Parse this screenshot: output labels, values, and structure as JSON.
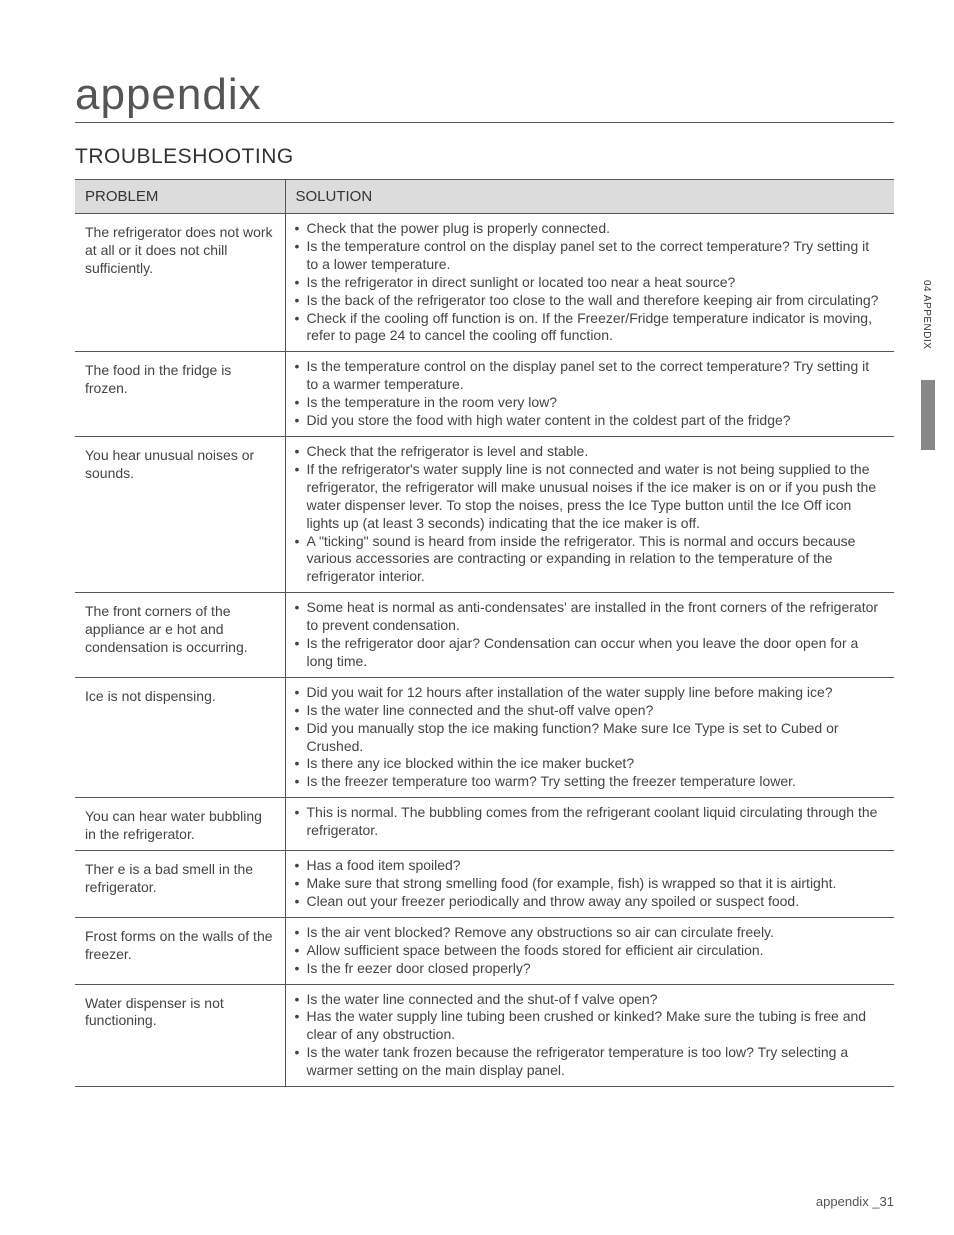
{
  "page": {
    "appendix_title": "appendix",
    "section_title": "TROUBLESHOOTING",
    "side_tab": "04 APPENDIX",
    "footer": "appendix _31"
  },
  "table": {
    "headers": {
      "problem": "PROBLEM",
      "solution": "SOLUTION"
    },
    "rows": [
      {
        "problem": "The refrigerator does not work at all or it does not chill sufficiently.",
        "solutions": [
          "Check that the power plug is properly connected.",
          "Is the temperature control on the display panel set to the correct temperature? Try setting it to a lower temperature.",
          "Is the refrigerator in direct sunlight or located too near a heat source?",
          "Is the back of the refrigerator too close to the wall and therefore keeping air from circulating?",
          "Check if the cooling off function is on. If the Freezer/Fridge temperature indicator is moving, refer to page 24 to cancel the cooling off function."
        ]
      },
      {
        "problem": "The food in the fridge is frozen.",
        "solutions": [
          "Is the temperature control on the display panel set to the correct temperature? Try setting it to a warmer temperature.",
          "Is the temperature in the room very low?",
          "Did you store the food with high water content in the coldest part of the fridge?"
        ]
      },
      {
        "problem": "You hear unusual noises or sounds.",
        "solutions": [
          "Check that the refrigerator is level and stable.",
          "If the refrigerator's water supply line is not connected and water is not being supplied to the refrigerator, the refrigerator will make unusual noises if the ice maker is on or if you push the water dispenser lever. To stop the noises, press the Ice Type button until the Ice Off icon lights up (at least 3 seconds) indicating that the ice maker is off.",
          "A \"ticking\" sound is heard from inside the refrigerator. This is normal and occurs because various accessories are contracting or expanding in relation to the temperature of the refrigerator interior."
        ]
      },
      {
        "problem": "The front corners of the appliance ar e hot and condensation is occurring.",
        "solutions": [
          "Some heat is normal as anti-condensates' are installed in the front corners of the refrigerator to prevent condensation.",
          "Is the refrigerator door ajar? Condensation can occur when you leave the door open for a long time."
        ]
      },
      {
        "problem": "Ice is not dispensing.",
        "solutions": [
          "Did you wait for 12 hours after installation of the water supply line before making ice?",
          "Is the water line connected and the shut-off valve open?",
          "Did you manually stop the ice making function? Make sure Ice Type is set to Cubed or Crushed.",
          "Is there any ice blocked within the ice maker bucket?",
          "Is the freezer temperature too warm? Try setting the freezer temperature lower."
        ]
      },
      {
        "problem": "You can hear water bubbling in the refrigerator.",
        "solutions": [
          "This is normal. The bubbling comes from the refrigerant coolant liquid circulating through the refrigerator."
        ]
      },
      {
        "problem": "Ther e is a bad smell in the refrigerator.",
        "solutions": [
          "Has a food item spoiled?",
          "Make sure that strong smelling food (for example, fish) is wrapped so that it is airtight.",
          "Clean out your freezer periodically and throw away any spoiled or suspect food."
        ]
      },
      {
        "problem": "Frost forms on the walls of the freezer.",
        "solutions": [
          "Is the air vent blocked? Remove any obstructions so air can circulate freely.",
          "Allow sufficient space between the foods stored for efficient air circulation.",
          "Is the fr eezer door closed properly?"
        ]
      },
      {
        "problem": "Water dispenser is not functioning.",
        "solutions": [
          "Is the water line connected and the shut-of f valve open?",
          "Has the water supply line tubing been crushed or kinked? Make sure the tubing is free and clear of any obstruction.",
          "Is the water tank frozen because the refrigerator temperature is too low? Try selecting a warmer setting on the main display panel."
        ]
      }
    ]
  }
}
